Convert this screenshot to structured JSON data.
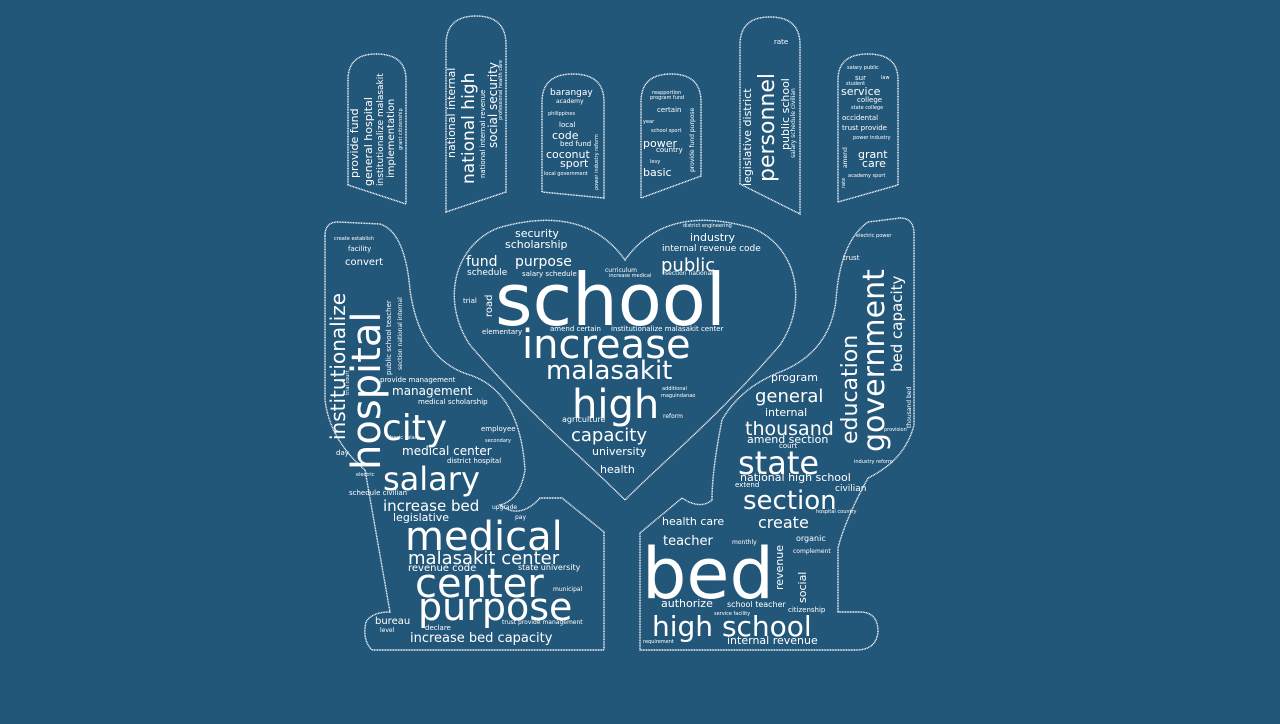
{
  "colors": {
    "background": "#23577a",
    "text": "#ffffff",
    "outline": "#ffffff"
  },
  "words": {
    "school": "school",
    "bed": "bed",
    "increase": "increase",
    "malasakit": "malasakit",
    "high": "high",
    "capacity": "capacity",
    "university": "university",
    "health": "health",
    "public": "public",
    "industry": "industry",
    "internal_revenue_code": "internal revenue code",
    "security": "security",
    "scholarship": "scholarship",
    "fund": "fund",
    "purpose": "purpose",
    "schedule": "schedule",
    "salary_schedule": "salary schedule",
    "road": "road",
    "trial": "trial",
    "elementary": "elementary",
    "amend_certain": "amend certain",
    "institutionalize_malasakit_center": "institutionalize malasakit center",
    "agriculture": "agriculture",
    "reform": "reform",
    "section_national": "section national",
    "curriculum": "curriculum",
    "increase_medical": "increase medical",
    "district_engineering": "district engineering",
    "additional": "additional",
    "maguindanao": "maguindanao",
    "hospital": "hospital",
    "institutionalize": "institutionalize",
    "city": "city",
    "salary": "salary",
    "medical": "medical",
    "center": "center",
    "purpose2": "purpose",
    "malasakit_center": "malasakit center",
    "increase_bed": "increase bed",
    "legislative": "legislative",
    "medical_center": "medical center",
    "management": "management",
    "provide_management": "provide management",
    "medical_scholarship": "medical scholarship",
    "convert": "convert",
    "facility": "facility",
    "create_establish": "create establish",
    "increase_bed_capacity": "increase bed capacity",
    "revenue_code": "revenue code",
    "state_university": "state university",
    "bureau": "bureau",
    "level": "level",
    "declare": "declare",
    "municipal": "municipal",
    "trust_provide_management": "trust provide management",
    "schedule_civilian": "schedule civilian",
    "district_hospital": "district hospital",
    "employee": "employee",
    "secondary": "secondary",
    "basic_salary": "basic salary",
    "upgrade": "upgrade",
    "pay": "pay",
    "day": "day",
    "electric": "electric",
    "public_school_teacher": "public school teacher",
    "section_national_internal": "section national internal",
    "trial_court": "trial court",
    "government": "government",
    "education": "education",
    "bed_capacity": "bed capacity",
    "state": "state",
    "section": "section",
    "thousand": "thousand",
    "general": "general",
    "internal": "internal",
    "amend_section": "amend section",
    "program": "program",
    "national_high_school": "national high school",
    "civilian": "civilian",
    "create": "create",
    "health_care": "health care",
    "teacher": "teacher",
    "high_school": "high school",
    "internal_revenue": "internal revenue",
    "authorize": "authorize",
    "school_teacher": "school teacher",
    "revenue": "revenue",
    "social": "social",
    "citizenship": "citizenship",
    "organic": "organic",
    "complement": "complement",
    "trust": "trust",
    "extend": "extend",
    "court": "court",
    "industry_reform": "industry reform",
    "thousand_bed": "thousand bed",
    "electric_power": "electric power",
    "provision": "provision",
    "monthly": "monthly",
    "service_facility": "service facility",
    "requirement": "requirement",
    "hospital_country": "hospital country",
    "national_internal": "national internal",
    "national_high": "national high",
    "social_security": "social security",
    "national_internal_revenue": "national internal revenue",
    "professional_health_care": "professional health care",
    "provide_fund": "provide fund",
    "general_hospital": "general hospital",
    "institutionalize_malasakit": "institutionalize malasakit",
    "implementation": "implementation",
    "grant_citizenship": "grant citizenship",
    "barangay": "barangay",
    "academy": "academy",
    "philippines": "philippines",
    "local": "local",
    "code": "code",
    "bed_fund": "bed fund",
    "coconut": "coconut",
    "sport": "sport",
    "local_government": "local government",
    "power_industry_reform": "power industry reform",
    "reapportion": "reapportion",
    "program_fund": "program fund",
    "certain": "certain",
    "year": "year",
    "school_sport": "school sport",
    "power": "power",
    "country": "country",
    "levy": "levy",
    "basic": "basic",
    "provide_fund_purpose": "provide fund purpose",
    "legislative_district": "legislative district",
    "personnel": "personnel",
    "public_school": "public school",
    "salary_schedule_civilian": "salary schedule civilian",
    "rate": "rate",
    "salary_public": "salary public",
    "sur": "sur",
    "law": "law",
    "student": "student",
    "service": "service",
    "college": "college",
    "state_college": "state college",
    "occidental": "occidental",
    "trust_provide": "trust provide",
    "power_industry": "power industry",
    "grant": "grant",
    "care": "care",
    "amend": "amend",
    "academy_sport": "academy sport",
    "rate2": "rate"
  }
}
